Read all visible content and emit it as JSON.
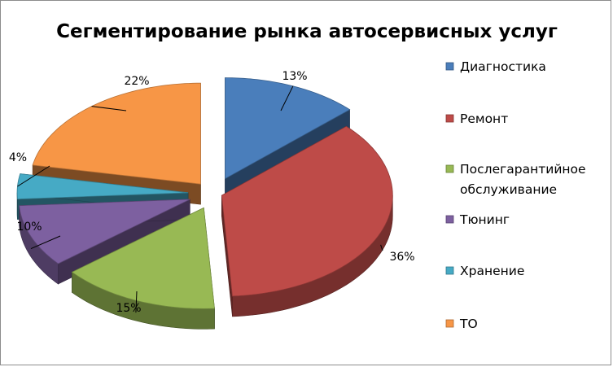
{
  "chart_data": {
    "type": "pie",
    "title": "Сегментирование рынка автосервисных услуг",
    "exploded": true,
    "three_d": true,
    "legend_position": "right",
    "categories": [
      "Диагностика",
      "Ремонт",
      "Послегарантийное обслуживание",
      "Тюнинг",
      "Хранение",
      "ТО"
    ],
    "legend_lines": [
      [
        "Диагностика"
      ],
      [
        "Ремонт"
      ],
      [
        "Послегарантийное",
        "обслуживание"
      ],
      [
        "Тюнинг"
      ],
      [
        "Хранение"
      ],
      [
        "ТО"
      ]
    ],
    "values": [
      13,
      36,
      15,
      10,
      4,
      22
    ],
    "data_labels": [
      "13%",
      "36%",
      "15%",
      "10%",
      "4%",
      "22%"
    ],
    "colors": [
      "#4a7ebb",
      "#be4b48",
      "#98b954",
      "#7d60a0",
      "#46aac5",
      "#f79646"
    ]
  }
}
